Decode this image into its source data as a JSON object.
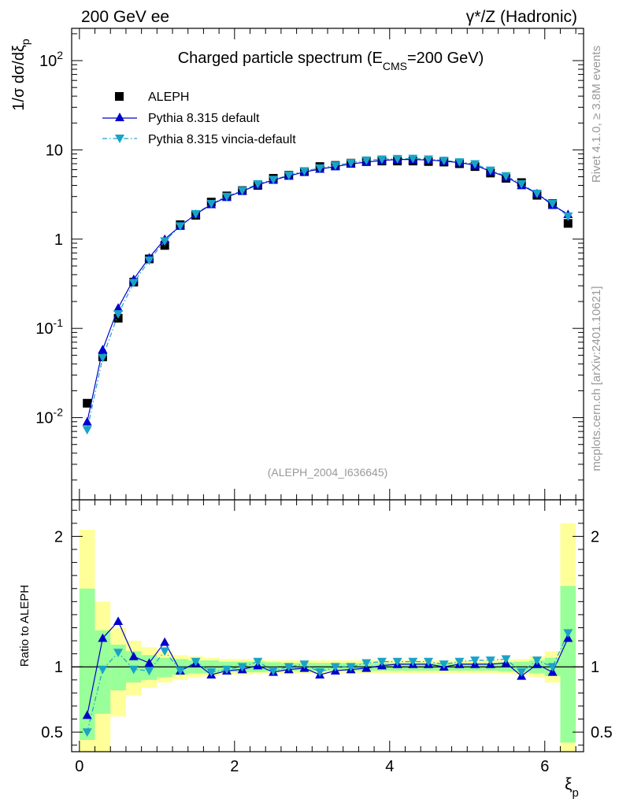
{
  "header": {
    "left": "200 GeV ee",
    "right": "γ*/Z (Hadronic)"
  },
  "side_text": {
    "rivet": "Rivet 4.1.0, ≥ 3.8M events",
    "mcplots": "mcplots.cern.ch [arXiv:2401.10621]"
  },
  "chart_data": {
    "type": "scatter",
    "title": "Charged particle spectrum (E",
    "title_sub": "CMS",
    "title_tail": "=200 GeV)",
    "analysis_tag": "(ALEPH_2004_I636645)",
    "xlabel": "ξ",
    "xlabel_sub": "p",
    "ylabel": "1/σ  dσ/dξ",
    "ylabel_sub": "p",
    "ratio_ylabel": "Ratio to ALEPH",
    "xlim": [
      -0.1,
      6.5
    ],
    "ylim": [
      0.0012,
      230
    ],
    "ratio_ylim": [
      0.35,
      2.28
    ],
    "x_ticks": [
      "0",
      "2",
      "4",
      "6"
    ],
    "y_ticks": [
      "10^-2",
      "10^-1",
      "1",
      "10",
      "10^2"
    ],
    "ratio_ticks": [
      "0.5",
      "1",
      "2"
    ],
    "x": [
      0.1,
      0.3,
      0.5,
      0.7,
      0.9,
      1.1,
      1.3,
      1.5,
      1.7,
      1.9,
      2.1,
      2.3,
      2.5,
      2.7,
      2.9,
      3.1,
      3.3,
      3.5,
      3.7,
      3.9,
      4.1,
      4.3,
      4.5,
      4.7,
      4.9,
      5.1,
      5.3,
      5.5,
      5.7,
      5.9,
      6.1,
      6.3
    ],
    "series": [
      {
        "name": "ALEPH",
        "marker": "square",
        "color": "#000000",
        "values": [
          0.0145,
          0.048,
          0.13,
          0.33,
          0.6,
          0.85,
          1.45,
          1.85,
          2.6,
          3.05,
          3.5,
          4.0,
          4.8,
          5.2,
          5.7,
          6.5,
          6.7,
          7.1,
          7.4,
          7.5,
          7.5,
          7.5,
          7.4,
          7.3,
          7.0,
          6.5,
          5.5,
          4.8,
          4.3,
          3.1,
          2.5,
          1.5
        ]
      },
      {
        "name": "Pythia 8.315 default",
        "marker": "triangle-up",
        "color": "#0000cc",
        "line": "solid",
        "values": [
          0.009,
          0.058,
          0.17,
          0.355,
          0.62,
          1.0,
          1.4,
          1.9,
          2.45,
          2.95,
          3.45,
          4.05,
          4.6,
          5.1,
          5.65,
          6.1,
          6.5,
          6.95,
          7.3,
          7.6,
          7.8,
          7.8,
          7.7,
          7.5,
          7.2,
          6.75,
          5.75,
          5.0,
          4.0,
          3.25,
          2.4,
          1.9
        ]
      },
      {
        "name": "Pythia 8.315 vincia-default",
        "marker": "triangle-down",
        "color": "#1aa3c8",
        "line": "dashdot",
        "values": [
          0.0073,
          0.047,
          0.145,
          0.325,
          0.58,
          0.95,
          1.4,
          1.92,
          2.5,
          3.0,
          3.5,
          4.15,
          4.65,
          5.2,
          5.8,
          6.25,
          6.7,
          7.15,
          7.65,
          7.85,
          7.95,
          8.0,
          7.85,
          7.6,
          7.3,
          6.95,
          5.9,
          5.1,
          4.15,
          3.25,
          2.5,
          1.8
        ]
      }
    ],
    "ratio_series": [
      {
        "name": "Pythia 8.315 default",
        "values": [
          0.63,
          1.22,
          1.35,
          1.08,
          1.03,
          1.19,
          0.97,
          1.03,
          0.94,
          0.97,
          0.98,
          1.01,
          0.96,
          0.98,
          0.99,
          0.94,
          0.97,
          0.98,
          0.99,
          1.01,
          1.02,
          1.02,
          1.02,
          1.0,
          1.02,
          1.02,
          1.02,
          1.03,
          0.93,
          1.02,
          0.96,
          1.22
        ]
      },
      {
        "name": "Pythia 8.315 vincia-default",
        "values": [
          0.5,
          0.98,
          1.11,
          0.98,
          0.97,
          1.12,
          0.97,
          1.04,
          0.96,
          0.98,
          1.0,
          1.04,
          0.97,
          1.0,
          1.02,
          0.96,
          1.0,
          1.0,
          1.03,
          1.04,
          1.04,
          1.04,
          1.04,
          1.02,
          1.04,
          1.05,
          1.05,
          1.06,
          0.96,
          1.05,
          1.0,
          1.26
        ]
      }
    ],
    "ratio_bands": {
      "bin_edges": [
        0.0,
        0.2,
        0.4,
        0.6,
        0.8,
        1.0,
        1.2,
        1.4,
        1.6,
        1.8,
        2.0,
        2.2,
        2.4,
        2.6,
        2.8,
        3.0,
        3.2,
        3.4,
        3.6,
        3.8,
        4.0,
        4.2,
        4.4,
        4.6,
        4.8,
        5.0,
        5.2,
        5.4,
        5.6,
        5.8,
        6.0,
        6.2,
        6.4
      ],
      "green_low": [
        0.44,
        0.64,
        0.82,
        0.88,
        0.9,
        0.92,
        0.94,
        0.95,
        0.95,
        0.96,
        0.96,
        0.96,
        0.965,
        0.97,
        0.97,
        0.97,
        0.97,
        0.97,
        0.97,
        0.97,
        0.97,
        0.97,
        0.97,
        0.97,
        0.97,
        0.97,
        0.97,
        0.965,
        0.96,
        0.95,
        0.93,
        0.42
      ],
      "green_high": [
        1.6,
        1.28,
        1.17,
        1.12,
        1.09,
        1.07,
        1.06,
        1.05,
        1.05,
        1.04,
        1.04,
        1.04,
        1.035,
        1.03,
        1.03,
        1.03,
        1.03,
        1.03,
        1.03,
        1.03,
        1.03,
        1.03,
        1.03,
        1.03,
        1.03,
        1.03,
        1.03,
        1.035,
        1.04,
        1.05,
        1.07,
        1.62
      ],
      "yellow_low": [
        0.0,
        0.0,
        0.62,
        0.78,
        0.84,
        0.88,
        0.9,
        0.92,
        0.93,
        0.94,
        0.94,
        0.945,
        0.95,
        0.95,
        0.95,
        0.95,
        0.95,
        0.95,
        0.95,
        0.95,
        0.95,
        0.95,
        0.95,
        0.95,
        0.95,
        0.95,
        0.95,
        0.945,
        0.94,
        0.92,
        0.88,
        0.0
      ],
      "yellow_high": [
        2.05,
        1.5,
        1.3,
        1.2,
        1.15,
        1.12,
        1.09,
        1.08,
        1.07,
        1.06,
        1.06,
        1.055,
        1.05,
        1.05,
        1.05,
        1.05,
        1.05,
        1.05,
        1.05,
        1.05,
        1.05,
        1.05,
        1.05,
        1.05,
        1.05,
        1.05,
        1.05,
        1.055,
        1.06,
        1.08,
        1.12,
        2.1
      ]
    },
    "colors": {
      "band_green": "#99ff99",
      "band_yellow": "#ffff99",
      "axis": "#000000",
      "tag": "#999999"
    }
  }
}
